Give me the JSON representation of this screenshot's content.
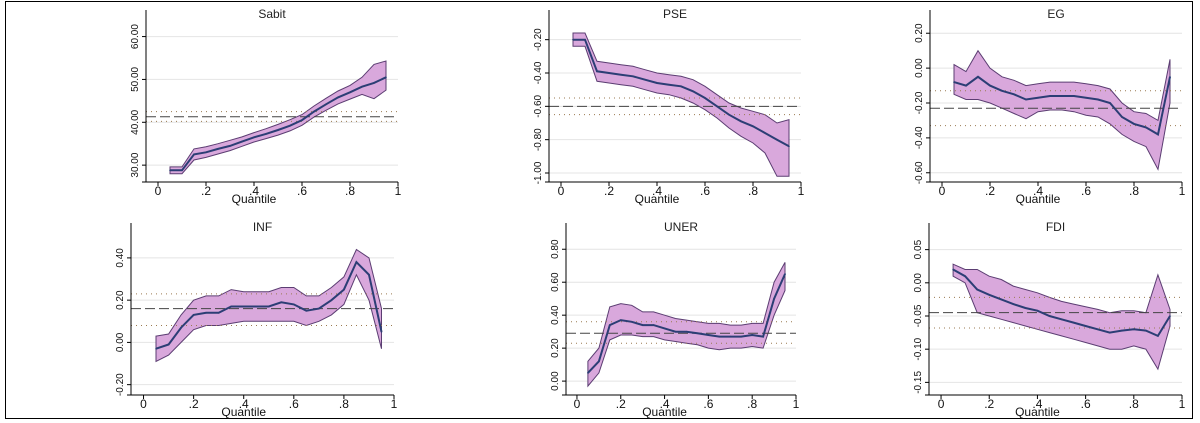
{
  "colors": {
    "band_fill": "#d9a8dc",
    "band_edge": "#5b3d72",
    "estimate_line": "#2c3e75",
    "ols_line": "#444444",
    "ols_ci": "#9a7a50",
    "grid": "#e4e4e4"
  },
  "chart_data": [
    {
      "type": "line",
      "title": "Sabit",
      "xlabel": "Quantile",
      "ylabel": "",
      "xlim": [
        -0.05,
        1.0
      ],
      "ylim": [
        27,
        62
      ],
      "xticks": [
        0,
        0.2,
        0.4,
        0.6,
        0.8,
        1
      ],
      "xticklabels": [
        "0",
        ".2",
        ".4",
        ".6",
        ".8",
        "1"
      ],
      "yticks": [
        30,
        40,
        50,
        60
      ],
      "yticklabels": [
        "30.00",
        "40.00",
        "50.00",
        "60.00"
      ],
      "x": [
        0.05,
        0.1,
        0.15,
        0.2,
        0.25,
        0.3,
        0.35,
        0.4,
        0.45,
        0.5,
        0.55,
        0.6,
        0.65,
        0.7,
        0.75,
        0.8,
        0.85,
        0.9,
        0.95
      ],
      "estimate": [
        28.8,
        28.8,
        32.5,
        33.0,
        33.8,
        34.5,
        35.5,
        36.5,
        37.3,
        38.2,
        39.2,
        40.5,
        42.5,
        44.2,
        45.8,
        47.0,
        48.3,
        49.2,
        50.5
      ],
      "lower": [
        28.0,
        28.0,
        31.2,
        31.8,
        32.6,
        33.4,
        34.4,
        35.4,
        36.2,
        37.0,
        38.0,
        39.3,
        41.2,
        42.8,
        44.3,
        45.4,
        46.5,
        45.5,
        47.5
      ],
      "upper": [
        29.6,
        29.6,
        33.8,
        34.3,
        35.0,
        35.8,
        36.6,
        37.6,
        38.5,
        39.5,
        40.6,
        41.8,
        43.8,
        45.6,
        47.3,
        48.6,
        50.5,
        53.5,
        54.3
      ],
      "ols": 41.3,
      "ols_ci": [
        40.2,
        42.5
      ]
    },
    {
      "type": "line",
      "title": "PSE",
      "xlabel": "Quantile",
      "ylabel": "",
      "xlim": [
        -0.05,
        1.0
      ],
      "ylim": [
        -1.03,
        -0.13
      ],
      "xticks": [
        0,
        0.2,
        0.4,
        0.6,
        0.8,
        1
      ],
      "xticklabels": [
        "0",
        ".2",
        ".4",
        ".6",
        ".8",
        "1"
      ],
      "yticks": [
        -1.0,
        -0.8,
        -0.6,
        -0.4,
        -0.2
      ],
      "yticklabels": [
        "-1.00",
        "-0.80",
        "-0.60",
        "-0.40",
        "-0.20"
      ],
      "x": [
        0.05,
        0.1,
        0.15,
        0.2,
        0.25,
        0.3,
        0.35,
        0.4,
        0.45,
        0.5,
        0.55,
        0.6,
        0.65,
        0.7,
        0.75,
        0.8,
        0.85,
        0.9,
        0.95
      ],
      "estimate": [
        -0.2,
        -0.2,
        -0.39,
        -0.4,
        -0.41,
        -0.42,
        -0.44,
        -0.46,
        -0.47,
        -0.48,
        -0.51,
        -0.55,
        -0.6,
        -0.65,
        -0.69,
        -0.72,
        -0.76,
        -0.8,
        -0.84
      ],
      "lower": [
        -0.24,
        -0.24,
        -0.45,
        -0.46,
        -0.47,
        -0.48,
        -0.5,
        -0.52,
        -0.53,
        -0.55,
        -0.58,
        -0.62,
        -0.67,
        -0.73,
        -0.78,
        -0.82,
        -0.88,
        -1.02,
        -1.02
      ],
      "upper": [
        -0.16,
        -0.16,
        -0.33,
        -0.34,
        -0.35,
        -0.36,
        -0.38,
        -0.4,
        -0.41,
        -0.42,
        -0.44,
        -0.48,
        -0.53,
        -0.58,
        -0.61,
        -0.63,
        -0.65,
        -0.7,
        -0.68
      ],
      "ols": -0.6,
      "ols_ci": [
        -0.65,
        -0.55
      ]
    },
    {
      "type": "line",
      "title": "EG",
      "xlabel": "Quantile",
      "ylabel": "",
      "xlim": [
        -0.05,
        1.0
      ],
      "ylim": [
        -0.63,
        0.23
      ],
      "xticks": [
        0,
        0.2,
        0.4,
        0.6,
        0.8,
        1
      ],
      "xticklabels": [
        "0",
        ".2",
        ".4",
        ".6",
        ".8",
        "1"
      ],
      "yticks": [
        -0.6,
        -0.4,
        -0.2,
        0.0,
        0.2
      ],
      "yticklabels": [
        "-0.60",
        "-0.40",
        "-0.20",
        "0.00",
        "0.20"
      ],
      "x": [
        0.05,
        0.1,
        0.15,
        0.2,
        0.25,
        0.3,
        0.35,
        0.4,
        0.45,
        0.5,
        0.55,
        0.6,
        0.65,
        0.7,
        0.75,
        0.8,
        0.85,
        0.9,
        0.95
      ],
      "estimate": [
        -0.08,
        -0.1,
        -0.05,
        -0.1,
        -0.13,
        -0.15,
        -0.18,
        -0.17,
        -0.16,
        -0.16,
        -0.16,
        -0.17,
        -0.18,
        -0.2,
        -0.28,
        -0.32,
        -0.34,
        -0.38,
        -0.05
      ],
      "lower": [
        -0.15,
        -0.18,
        -0.18,
        -0.2,
        -0.23,
        -0.26,
        -0.29,
        -0.25,
        -0.24,
        -0.24,
        -0.25,
        -0.27,
        -0.28,
        -0.32,
        -0.38,
        -0.42,
        -0.45,
        -0.58,
        -0.2
      ],
      "upper": [
        0.02,
        -0.02,
        0.1,
        0.0,
        -0.05,
        -0.07,
        -0.1,
        -0.09,
        -0.08,
        -0.08,
        -0.08,
        -0.09,
        -0.1,
        -0.12,
        -0.2,
        -0.25,
        -0.26,
        -0.3,
        0.05
      ],
      "ols": -0.23,
      "ols_ci": [
        -0.33,
        -0.13
      ]
    },
    {
      "type": "line",
      "title": "INF",
      "xlabel": "Quantile",
      "ylabel": "",
      "xlim": [
        -0.05,
        1.0
      ],
      "ylim": [
        -0.23,
        0.48
      ],
      "xticks": [
        0,
        0.2,
        0.4,
        0.6,
        0.8,
        1
      ],
      "xticklabels": [
        "0",
        ".2",
        ".4",
        ".6",
        ".8",
        "1"
      ],
      "yticks": [
        -0.2,
        0.0,
        0.2,
        0.4
      ],
      "yticklabels": [
        "-0.20",
        "0.00",
        "0.20",
        "0.40"
      ],
      "x": [
        0.05,
        0.1,
        0.15,
        0.2,
        0.25,
        0.3,
        0.35,
        0.4,
        0.45,
        0.5,
        0.55,
        0.6,
        0.65,
        0.7,
        0.75,
        0.8,
        0.85,
        0.9,
        0.95
      ],
      "estimate": [
        -0.03,
        -0.01,
        0.07,
        0.13,
        0.14,
        0.14,
        0.17,
        0.17,
        0.17,
        0.17,
        0.19,
        0.18,
        0.15,
        0.16,
        0.2,
        0.25,
        0.38,
        0.32,
        0.05
      ],
      "lower": [
        -0.09,
        -0.06,
        0.0,
        0.06,
        0.08,
        0.08,
        0.09,
        0.1,
        0.1,
        0.1,
        0.1,
        0.1,
        0.08,
        0.1,
        0.13,
        0.18,
        0.32,
        0.2,
        -0.03
      ],
      "upper": [
        0.03,
        0.04,
        0.13,
        0.2,
        0.22,
        0.22,
        0.25,
        0.24,
        0.24,
        0.24,
        0.26,
        0.26,
        0.22,
        0.22,
        0.26,
        0.31,
        0.44,
        0.4,
        0.16
      ],
      "ols": 0.16,
      "ols_ci": [
        0.08,
        0.23
      ]
    },
    {
      "type": "line",
      "title": "UNER",
      "xlabel": "Quantile",
      "ylabel": "",
      "xlim": [
        -0.05,
        1.0
      ],
      "ylim": [
        -0.06,
        0.85
      ],
      "xticks": [
        0,
        0.2,
        0.4,
        0.6,
        0.8,
        1
      ],
      "xticklabels": [
        "0",
        ".2",
        ".4",
        ".6",
        ".8",
        "1"
      ],
      "yticks": [
        0.0,
        0.2,
        0.4,
        0.6,
        0.8
      ],
      "yticklabels": [
        "0.00",
        "0.20",
        "0.40",
        "0.60",
        "0.80"
      ],
      "x": [
        0.05,
        0.1,
        0.15,
        0.2,
        0.25,
        0.3,
        0.35,
        0.4,
        0.45,
        0.5,
        0.55,
        0.6,
        0.65,
        0.7,
        0.75,
        0.8,
        0.85,
        0.9,
        0.95
      ],
      "estimate": [
        0.05,
        0.12,
        0.34,
        0.37,
        0.36,
        0.34,
        0.34,
        0.32,
        0.3,
        0.3,
        0.29,
        0.28,
        0.27,
        0.27,
        0.27,
        0.28,
        0.27,
        0.5,
        0.65
      ],
      "lower": [
        -0.03,
        0.05,
        0.25,
        0.28,
        0.28,
        0.27,
        0.27,
        0.25,
        0.24,
        0.23,
        0.22,
        0.2,
        0.19,
        0.2,
        0.2,
        0.21,
        0.2,
        0.4,
        0.55
      ],
      "upper": [
        0.12,
        0.2,
        0.45,
        0.47,
        0.46,
        0.42,
        0.42,
        0.4,
        0.38,
        0.37,
        0.36,
        0.35,
        0.35,
        0.34,
        0.34,
        0.35,
        0.35,
        0.6,
        0.72
      ],
      "ols": 0.29,
      "ols_ci": [
        0.23,
        0.36
      ]
    },
    {
      "type": "line",
      "title": "FDI",
      "xlabel": "Quantile",
      "ylabel": "",
      "xlim": [
        -0.05,
        1.0
      ],
      "ylim": [
        -0.163,
        0.063
      ],
      "xticks": [
        0,
        0.2,
        0.4,
        0.6,
        0.8,
        1
      ],
      "xticklabels": [
        "0",
        ".2",
        ".4",
        ".6",
        ".8",
        "1"
      ],
      "yticks": [
        -0.15,
        -0.1,
        -0.05,
        0.0,
        0.05
      ],
      "yticklabels": [
        "-0.15",
        "-0.10",
        "-0.05",
        "0.00",
        "0.05"
      ],
      "x": [
        0.05,
        0.1,
        0.15,
        0.2,
        0.25,
        0.3,
        0.35,
        0.4,
        0.45,
        0.5,
        0.55,
        0.6,
        0.65,
        0.7,
        0.75,
        0.8,
        0.85,
        0.9,
        0.95
      ],
      "estimate": [
        0.02,
        0.01,
        -0.01,
        -0.018,
        -0.025,
        -0.032,
        -0.038,
        -0.042,
        -0.05,
        -0.055,
        -0.06,
        -0.065,
        -0.07,
        -0.075,
        -0.072,
        -0.07,
        -0.072,
        -0.08,
        -0.05
      ],
      "lower": [
        0.01,
        0.0,
        -0.045,
        -0.05,
        -0.055,
        -0.06,
        -0.065,
        -0.07,
        -0.075,
        -0.08,
        -0.085,
        -0.09,
        -0.095,
        -0.1,
        -0.1,
        -0.095,
        -0.1,
        -0.13,
        -0.065
      ],
      "upper": [
        0.028,
        0.02,
        0.02,
        0.01,
        0.005,
        -0.005,
        -0.01,
        -0.015,
        -0.022,
        -0.028,
        -0.032,
        -0.036,
        -0.04,
        -0.045,
        -0.042,
        -0.042,
        -0.045,
        0.012,
        -0.04
      ],
      "ols": -0.045,
      "ols_ci": [
        -0.068,
        -0.022
      ]
    }
  ]
}
